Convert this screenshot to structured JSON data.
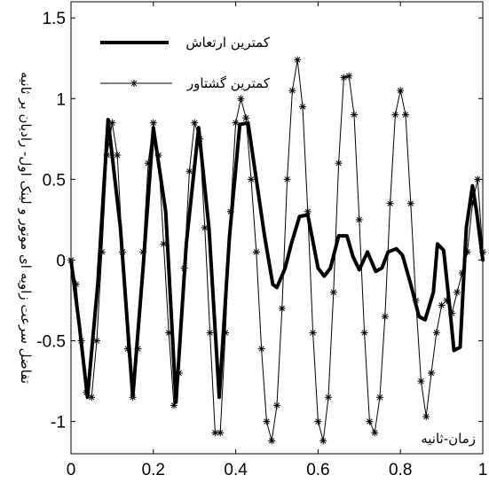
{
  "chart_data": {
    "type": "line",
    "xlabel": "زمان-ثانیه",
    "ylabel": "تفاضل سرعت زاویه ای موتور و لینک اول- رادیان بر ثانیه",
    "xlim": [
      0,
      1
    ],
    "ylim": [
      -1.2,
      1.6
    ],
    "xticks": [
      "0",
      "0.2",
      "0.4",
      "0.6",
      "0.8",
      "1"
    ],
    "xtick_values": [
      0,
      0.2,
      0.4,
      0.6,
      0.8,
      1
    ],
    "yticks": [
      "-1",
      "-0.5",
      "0",
      "0.5",
      "1",
      "1.5"
    ],
    "ytick_values": [
      -1,
      -0.5,
      0,
      0.5,
      1,
      1.5
    ],
    "grid": false,
    "legend_position": "top-left",
    "series": [
      {
        "name": "کمترین ارتعاش",
        "color": "#000000",
        "style": "thick-solid",
        "x": [
          0,
          0.02,
          0.04,
          0.065,
          0.09,
          0.12,
          0.15,
          0.175,
          0.2,
          0.23,
          0.255,
          0.28,
          0.31,
          0.335,
          0.36,
          0.385,
          0.41,
          0.43,
          0.45,
          0.47,
          0.49,
          0.5,
          0.52,
          0.535,
          0.555,
          0.575,
          0.6,
          0.615,
          0.63,
          0.65,
          0.67,
          0.685,
          0.7,
          0.72,
          0.74,
          0.755,
          0.77,
          0.79,
          0.805,
          0.825,
          0.845,
          0.86,
          0.88,
          0.89,
          0.905,
          0.92,
          0.93,
          0.945,
          0.96,
          0.975,
          0.985,
          1
        ],
        "y": [
          0,
          -0.4,
          -0.85,
          -0.15,
          0.87,
          0.2,
          -0.85,
          -0.05,
          0.82,
          0.3,
          -0.88,
          0.1,
          0.82,
          0.2,
          -0.85,
          0.15,
          0.84,
          0.85,
          0.5,
          0.15,
          -0.15,
          -0.17,
          -0.05,
          0.1,
          0.27,
          0.28,
          -0.05,
          -0.1,
          -0.05,
          0.15,
          0.15,
          0.02,
          -0.06,
          0.05,
          -0.07,
          -0.05,
          0.05,
          0.07,
          0.03,
          -0.15,
          -0.35,
          -0.37,
          -0.2,
          0.1,
          0.06,
          -0.3,
          -0.56,
          -0.54,
          0.2,
          0.46,
          0.3,
          0
        ]
      },
      {
        "name": "کمترین گشتاور",
        "color": "#000000",
        "style": "thin-solid-star",
        "x": [
          0,
          0.0125,
          0.025,
          0.0375,
          0.05,
          0.0625,
          0.075,
          0.0875,
          0.1,
          0.1125,
          0.125,
          0.1375,
          0.15,
          0.1625,
          0.175,
          0.1875,
          0.2,
          0.2125,
          0.225,
          0.2375,
          0.25,
          0.2625,
          0.275,
          0.2875,
          0.3,
          0.3125,
          0.325,
          0.3375,
          0.35,
          0.3625,
          0.375,
          0.3875,
          0.4,
          0.4125,
          0.425,
          0.4375,
          0.45,
          0.4625,
          0.475,
          0.4875,
          0.5,
          0.5125,
          0.525,
          0.5375,
          0.55,
          0.5625,
          0.575,
          0.5875,
          0.6,
          0.6125,
          0.625,
          0.6375,
          0.65,
          0.6625,
          0.675,
          0.6875,
          0.7,
          0.7125,
          0.725,
          0.7375,
          0.75,
          0.7625,
          0.775,
          0.7875,
          0.8,
          0.8125,
          0.825,
          0.8375,
          0.85,
          0.8625,
          0.875,
          0.8875,
          0.9,
          0.9125,
          0.925,
          0.9375,
          0.95,
          0.9625,
          0.975,
          0.9875,
          1
        ],
        "y": [
          0,
          -0.15,
          -0.5,
          -0.82,
          -0.85,
          -0.5,
          0.05,
          0.65,
          0.85,
          0.65,
          0.05,
          -0.55,
          -0.85,
          -0.55,
          0.05,
          0.6,
          0.85,
          0.65,
          0.1,
          -0.45,
          -0.9,
          -0.7,
          -0.05,
          0.55,
          0.85,
          0.75,
          0.2,
          -0.45,
          -1.07,
          -1.07,
          -0.45,
          0.3,
          0.85,
          1.0,
          0.88,
          0.5,
          0.05,
          -0.55,
          -1.0,
          -1.12,
          -0.9,
          -0.3,
          0.5,
          1.05,
          1.24,
          0.95,
          0.3,
          -0.45,
          -1.0,
          -1.12,
          -0.85,
          -0.2,
          0.6,
          1.13,
          1.14,
          0.9,
          0.25,
          -0.45,
          -1.0,
          -1.07,
          -0.85,
          -0.35,
          0.35,
          0.9,
          1.05,
          0.9,
          0.35,
          -0.25,
          -0.75,
          -0.97,
          -0.7,
          -0.45,
          -0.28,
          -0.25,
          -0.33,
          -0.2,
          -0.08,
          0.05,
          0.35,
          0.5,
          0.05
        ]
      }
    ]
  }
}
